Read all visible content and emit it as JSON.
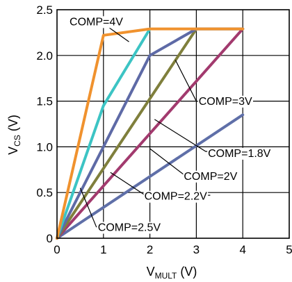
{
  "chart_data": {
    "type": "line",
    "title": "",
    "xlabel": {
      "main": "V",
      "sub": "MULT",
      "unit": " (V)"
    },
    "ylabel": {
      "main": "V",
      "sub": "CS",
      "unit": " (V)"
    },
    "xlim": [
      0,
      5
    ],
    "ylim": [
      0,
      2.5
    ],
    "x_ticks": [
      0,
      1,
      2,
      3,
      4,
      5
    ],
    "x_tick_labels": [
      "0",
      "1",
      "2",
      "3",
      "4",
      "5"
    ],
    "y_ticks": [
      0,
      0.5,
      1.0,
      1.5,
      2.0,
      2.5
    ],
    "y_tick_labels": [
      "0",
      "0.5",
      "1.0",
      "1.5",
      "2.0",
      "2.5"
    ],
    "grid": true,
    "legend": "none",
    "series": [
      {
        "label": "COMP=4V",
        "color": "#f0922e",
        "points": [
          [
            0,
            0
          ],
          [
            1,
            2.22
          ],
          [
            2,
            2.29
          ],
          [
            4,
            2.29
          ]
        ]
      },
      {
        "label": "COMP=3V",
        "color": "#3cc4c4",
        "points": [
          [
            0,
            0
          ],
          [
            1,
            1.45
          ],
          [
            2,
            2.29
          ]
        ]
      },
      {
        "label": "COMP=2.5V",
        "color": "#5e6aa6",
        "points": [
          [
            0,
            0
          ],
          [
            2,
            2.0
          ],
          [
            3,
            2.29
          ],
          [
            4,
            2.29
          ]
        ]
      },
      {
        "label": "COMP=2.2V",
        "color": "#7f7f3c",
        "points": [
          [
            0,
            0
          ],
          [
            3,
            2.29
          ],
          [
            4,
            2.29
          ]
        ]
      },
      {
        "label": "COMP=2V",
        "color": "#a23a6e",
        "points": [
          [
            0,
            0
          ],
          [
            4,
            2.29
          ]
        ]
      },
      {
        "label": "COMP=1.8V",
        "color": "#5f6fa8",
        "points": [
          [
            0,
            0
          ],
          [
            4,
            1.35
          ]
        ]
      }
    ],
    "annotations": [
      {
        "text": "COMP=4V",
        "at": [
          0.27,
          2.33
        ],
        "leader": [
          [
            1.05,
            2.33
          ],
          [
            1.55,
            2.15
          ]
        ]
      },
      {
        "text": "COMP=3V",
        "at": [
          3.05,
          1.46
        ],
        "leader": [
          [
            2.55,
            1.95
          ],
          [
            3.0,
            1.5
          ],
          [
            3.9,
            1.5
          ]
        ]
      },
      {
        "text": "COMP=1.8V",
        "at": [
          3.25,
          0.89
        ],
        "leader": [
          [
            2.1,
            1.3
          ],
          [
            3.2,
            0.95
          ],
          [
            4.0,
            0.95
          ]
        ]
      },
      {
        "text": "COMP=2V",
        "at": [
          2.73,
          0.64
        ],
        "leader": [
          [
            2.0,
            0.98
          ],
          [
            2.72,
            0.7
          ],
          [
            3.6,
            0.7
          ]
        ]
      },
      {
        "text": "COMP=2.2V",
        "at": [
          1.88,
          0.42
        ],
        "leader": [
          [
            1.15,
            0.72
          ],
          [
            1.9,
            0.47
          ],
          [
            3.3,
            0.47
          ]
        ]
      },
      {
        "text": "COMP=2.5V",
        "at": [
          0.88,
          0.08
        ],
        "leader": [
          [
            0.5,
            0.55
          ],
          [
            0.85,
            0.12
          ]
        ]
      }
    ]
  }
}
